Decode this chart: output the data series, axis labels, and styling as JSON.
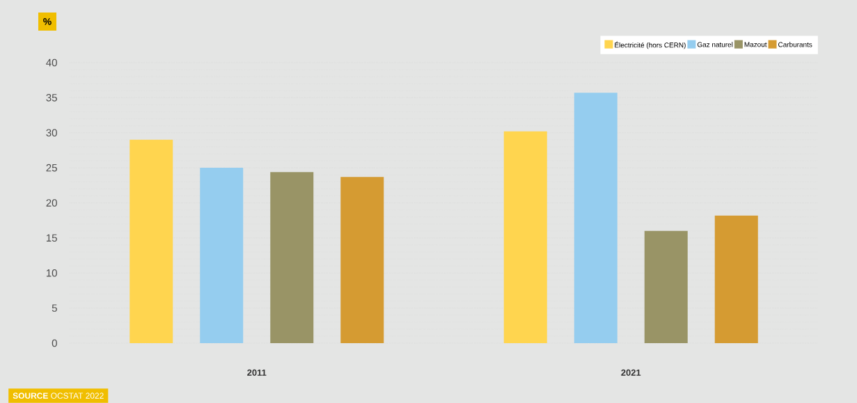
{
  "chart_data": {
    "type": "bar",
    "ylabel": "%",
    "categories": [
      "2011",
      "2021"
    ],
    "series": [
      {
        "name": "Électricité (hors CERN)",
        "color": "#ffd54f",
        "values": [
          29.0,
          30.2
        ]
      },
      {
        "name": "Gaz naturel",
        "color": "#95cdef",
        "values": [
          25.0,
          35.7
        ]
      },
      {
        "name": "Mazout",
        "color": "#999466",
        "values": [
          24.4,
          16.0
        ]
      },
      {
        "name": "Carburants",
        "color": "#d59b32",
        "values": [
          23.7,
          18.2
        ]
      }
    ],
    "ylim": [
      0,
      40
    ],
    "yticks": [
      0,
      5,
      10,
      15,
      20,
      25,
      30,
      35,
      40
    ],
    "grid": "y",
    "legend": "top right",
    "annotations": [
      "**SOURCE** OCSTAT 2022"
    ]
  }
}
